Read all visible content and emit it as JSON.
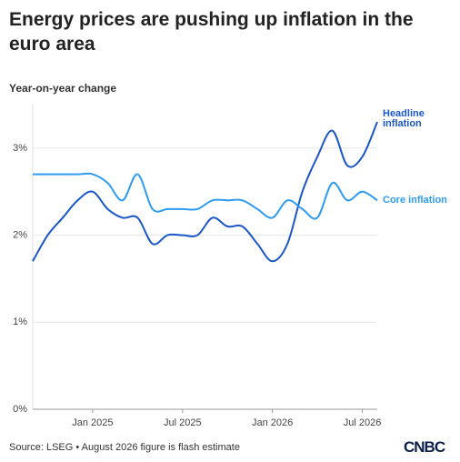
{
  "chart_data": {
    "type": "line",
    "title": "Energy prices are pushing up inflation in the euro area",
    "subtitle": "Year-on-year change",
    "source": "Source: LSEG • August 2026 figure is flash estimate",
    "brand": "CNBC",
    "x": [
      "2024-09",
      "2024-10",
      "2024-11",
      "2024-12",
      "2025-01",
      "2025-02",
      "2025-03",
      "2025-04",
      "2025-05",
      "2025-06",
      "2025-07",
      "2025-08",
      "2025-09",
      "2025-10",
      "2025-11",
      "2025-12",
      "2026-01",
      "2026-02",
      "2026-03",
      "2026-04",
      "2026-05",
      "2026-06",
      "2026-07",
      "2026-08"
    ],
    "xticks": [
      {
        "value": "2025-01",
        "label": "Jan 2025"
      },
      {
        "value": "2025-07",
        "label": "Jul 2025"
      },
      {
        "value": "2026-01",
        "label": "Jan 2026"
      },
      {
        "value": "2026-07",
        "label": "Jul 2026"
      }
    ],
    "ylim": [
      0,
      3.5
    ],
    "yticks": [
      {
        "value": 0,
        "label": "0%"
      },
      {
        "value": 1,
        "label": "1%"
      },
      {
        "value": 2,
        "label": "2%"
      },
      {
        "value": 3,
        "label": "3%"
      }
    ],
    "grid": true,
    "series": [
      {
        "name": "Headline inflation",
        "color": "#1a56c9",
        "values": [
          1.7,
          2.0,
          2.2,
          2.4,
          2.5,
          2.3,
          2.2,
          2.2,
          1.9,
          2.0,
          2.0,
          2.0,
          2.2,
          2.1,
          2.1,
          1.9,
          1.7,
          1.9,
          2.5,
          2.9,
          3.2,
          2.8,
          2.9,
          3.3
        ]
      },
      {
        "name": "Core inflation",
        "color": "#2e9bf2",
        "values": [
          2.7,
          2.7,
          2.7,
          2.7,
          2.7,
          2.6,
          2.4,
          2.7,
          2.3,
          2.3,
          2.3,
          2.3,
          2.4,
          2.4,
          2.4,
          2.3,
          2.2,
          2.4,
          2.3,
          2.2,
          2.6,
          2.4,
          2.5,
          2.4
        ]
      }
    ]
  }
}
